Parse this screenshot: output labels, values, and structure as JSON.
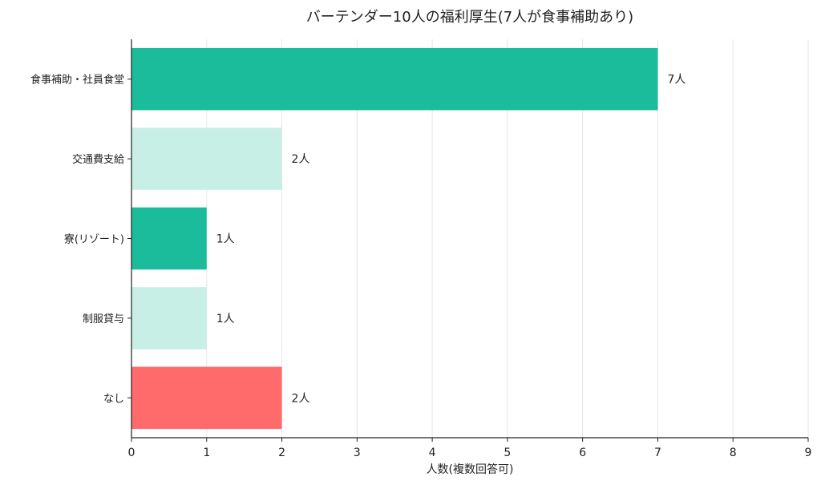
{
  "chart_data": {
    "type": "bar",
    "orientation": "horizontal",
    "title": "バーテンダー10人の福利厚生(7人が食事補助あり)",
    "xlabel": "人数(複数回答可)",
    "ylabel": "",
    "xlim": [
      0,
      9
    ],
    "xticks": [
      "0",
      "1",
      "2",
      "3",
      "4",
      "5",
      "6",
      "7",
      "8",
      "9"
    ],
    "grid": "vertical",
    "categories": [
      "食事補助・社員食堂",
      "交通費支給",
      "寮(リゾート)",
      "制服貸与",
      "なし"
    ],
    "values": [
      7,
      2,
      1,
      1,
      2
    ],
    "value_labels": [
      "7人",
      "2人",
      "1人",
      "1人",
      "2人"
    ],
    "bar_colors": [
      "#1abc9c",
      "#c8efe5",
      "#1abc9c",
      "#c8efe5",
      "#ff6b6b"
    ]
  }
}
